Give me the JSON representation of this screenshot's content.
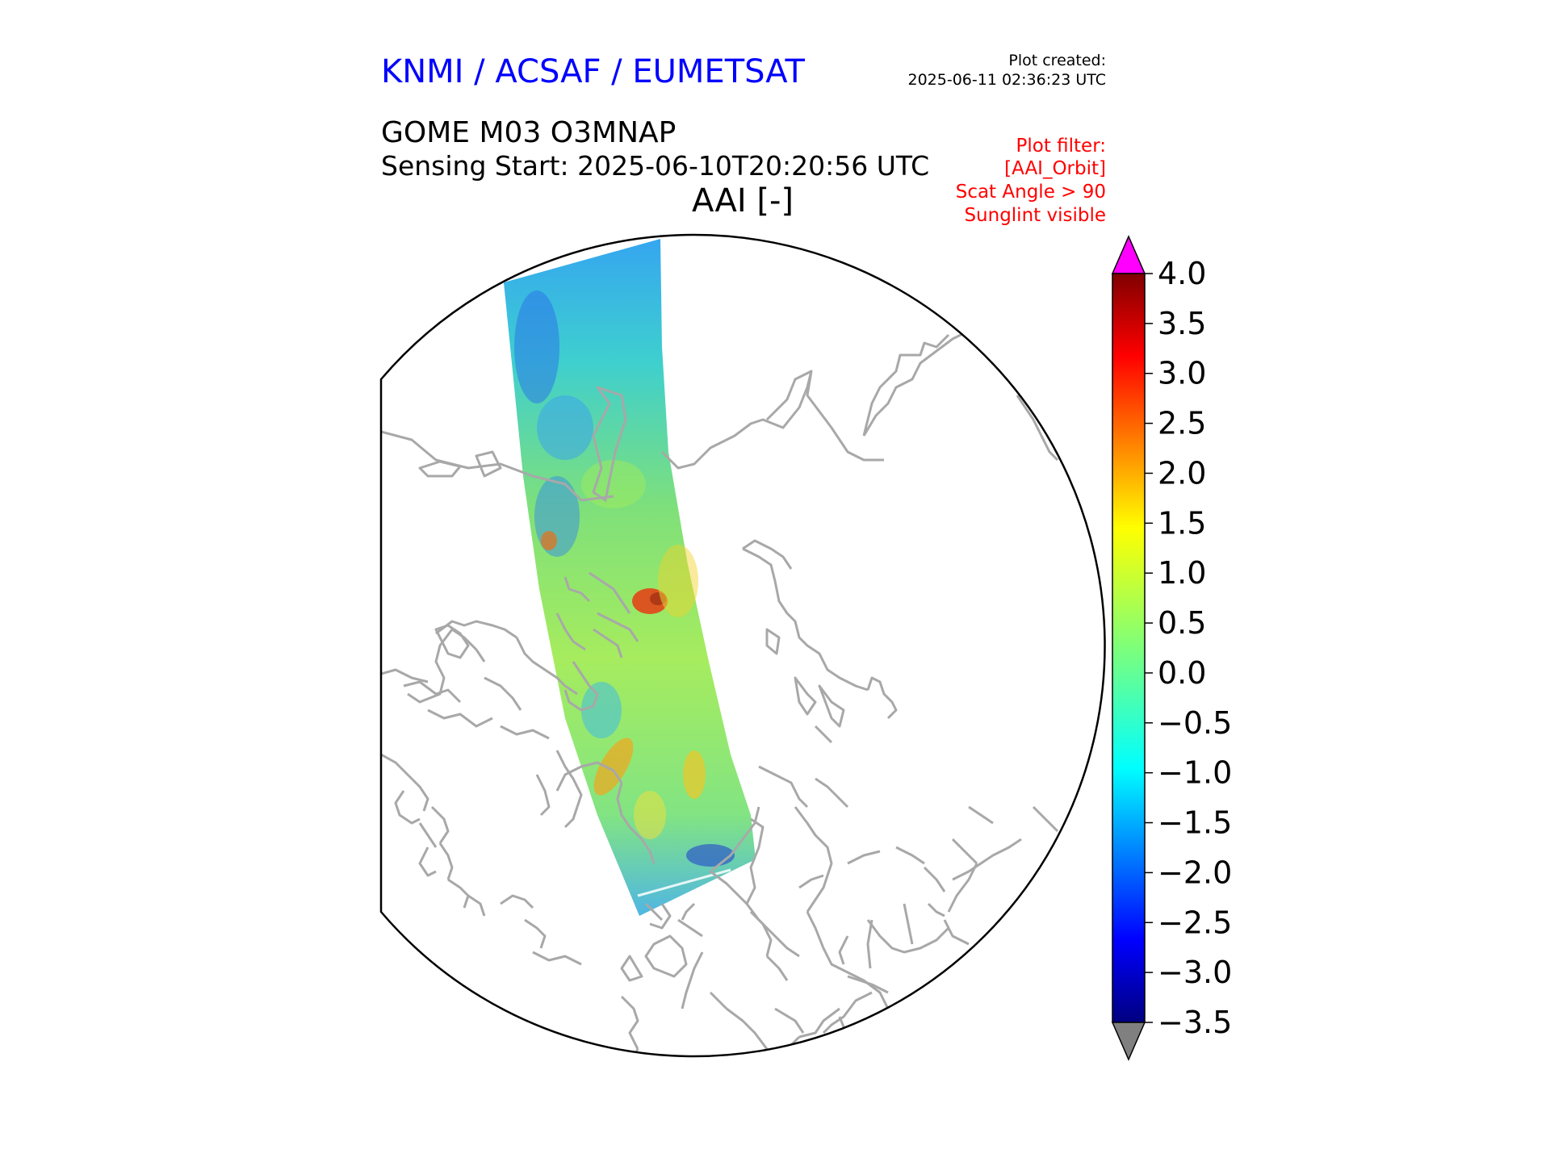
{
  "header": {
    "organization": "KNMI / ACSAF / EUMETSAT",
    "plot_created_label": "Plot created:",
    "plot_created_time": "2025-06-11 02:36:23 UTC"
  },
  "product": {
    "name": "GOME M03 O3MNAP",
    "sensing_start": "Sensing Start: 2025-06-10T20:20:56 UTC",
    "variable_title": "AAI [-]"
  },
  "plot_filter": {
    "lines": [
      "Plot filter:",
      "[AAI_Orbit]",
      "Scat Angle > 90",
      "Sunglint visible"
    ]
  },
  "map": {
    "projection": "north polar stereographic",
    "coastline_color": "#a8a8a8",
    "boundary_color": "#000000"
  },
  "colorbar": {
    "min": -3.5,
    "max": 4.0,
    "ticks": [
      4.0,
      3.5,
      3.0,
      2.5,
      2.0,
      1.5,
      1.0,
      0.5,
      0.0,
      -0.5,
      -1.0,
      -1.5,
      -2.0,
      -2.5,
      -3.0,
      -3.5
    ],
    "tick_labels": [
      "4.0",
      "3.5",
      "3.0",
      "2.5",
      "2.0",
      "1.5",
      "1.0",
      "0.5",
      "0.0",
      "−0.5",
      "−1.0",
      "−1.5",
      "−2.0",
      "−2.5",
      "−3.0",
      "−3.5"
    ],
    "colormap": "jet",
    "over_color": "#ff00ff",
    "under_color": "#808080"
  }
}
